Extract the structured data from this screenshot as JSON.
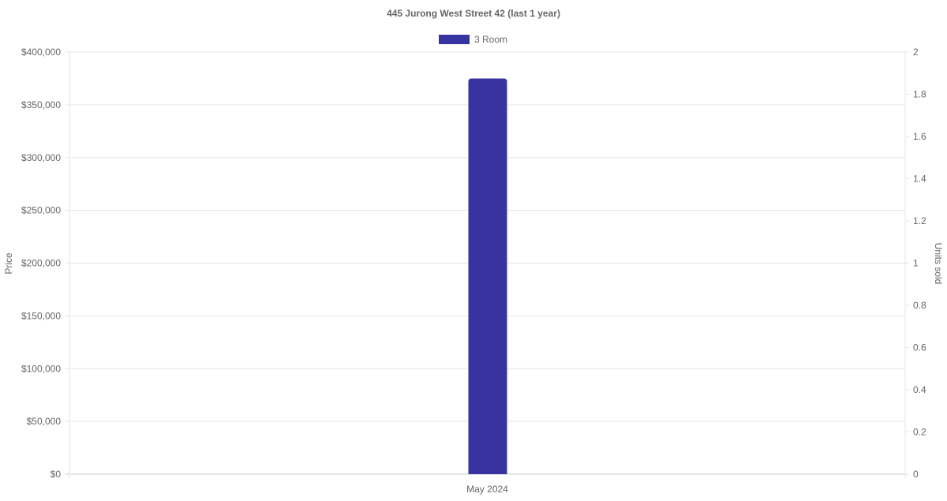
{
  "chart_data": {
    "type": "bar",
    "title": "445 Jurong West Street 42 (last 1 year)",
    "categories": [
      "May 2024"
    ],
    "series": [
      {
        "name": "3 Room",
        "values": [
          375000
        ],
        "color": "#3733a0"
      }
    ],
    "ylabel": "Price",
    "y2label": "Units sold",
    "ylim": [
      0,
      400000
    ],
    "y2lim": [
      0,
      2
    ],
    "yticks": [
      "$0",
      "$50,000",
      "$100,000",
      "$150,000",
      "$200,000",
      "$250,000",
      "$300,000",
      "$350,000",
      "$400,000"
    ],
    "y2ticks": [
      "0",
      "0.2",
      "0.4",
      "0.6",
      "0.8",
      "1",
      "1.2",
      "1.4",
      "1.6",
      "1.8",
      "2"
    ],
    "grid": true,
    "legend": "top"
  }
}
